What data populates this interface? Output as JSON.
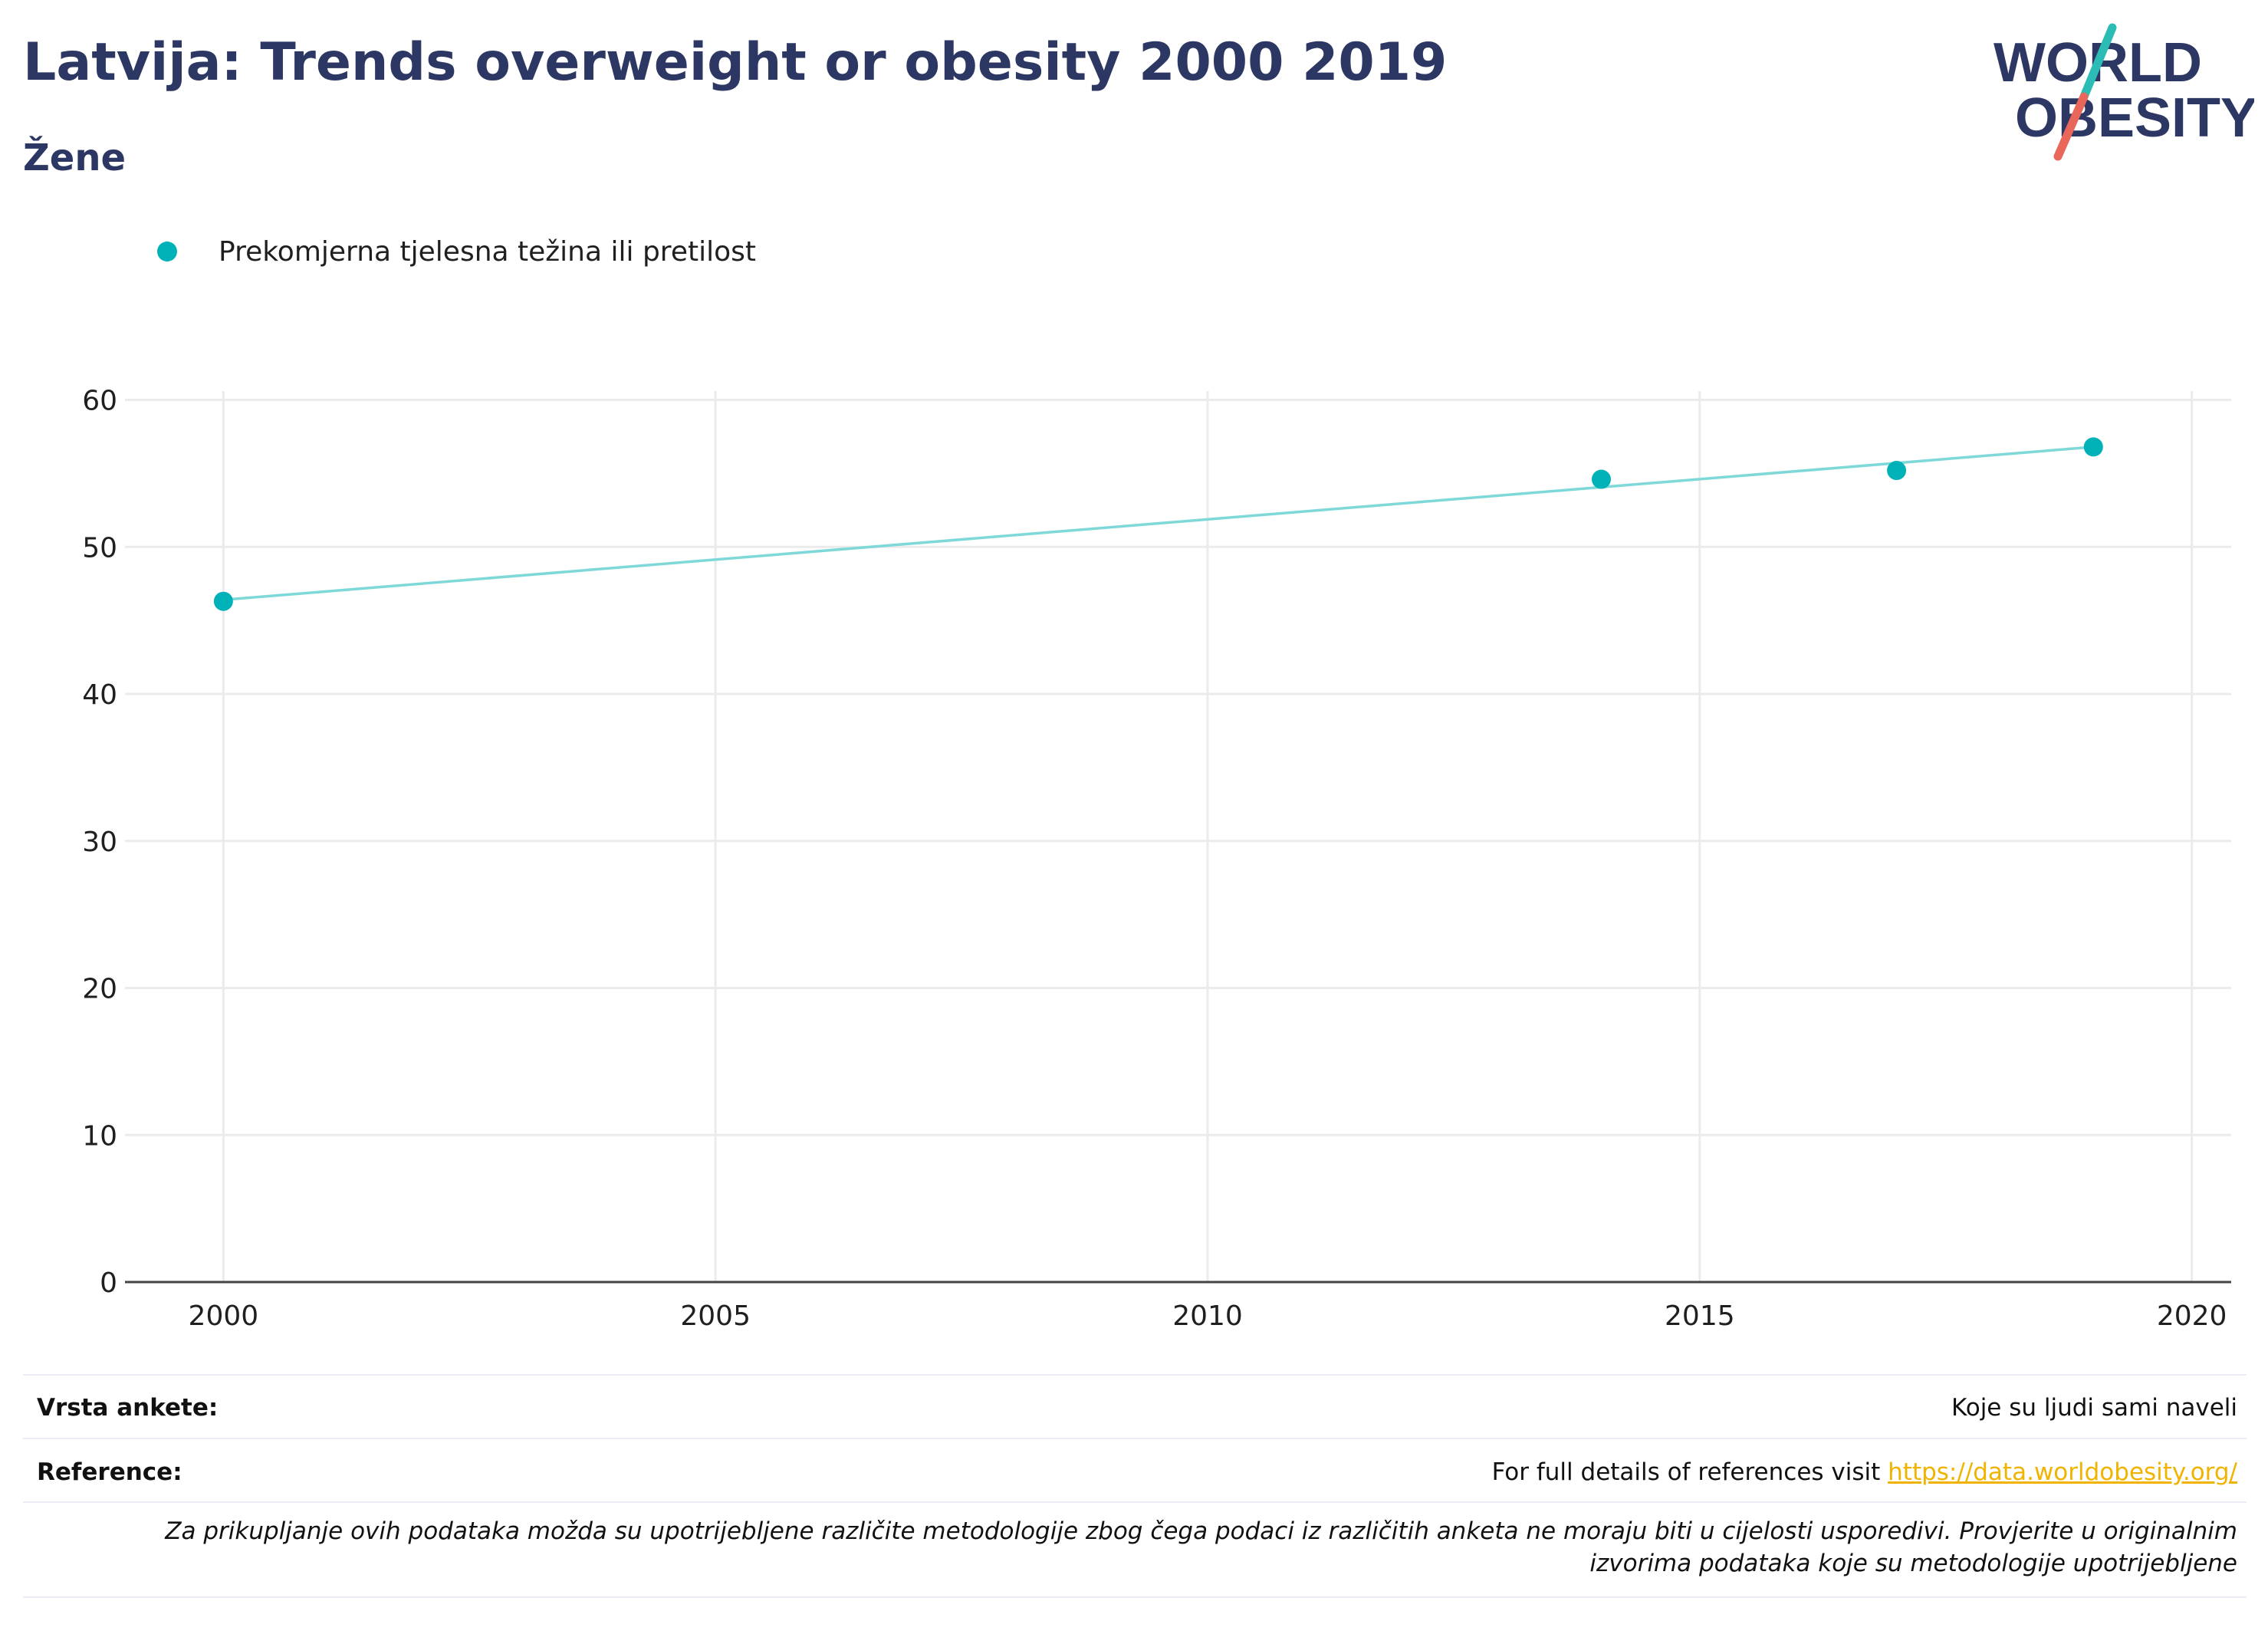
{
  "header": {
    "title": "Latvija: Trends overweight or obesity 2000 2019",
    "subtitle": "Žene"
  },
  "logo": {
    "line1": "WORLD",
    "line2": "OBESITY",
    "text_color": "#2c3763",
    "slash_top_color": "#2bbcb5",
    "slash_bottom_color": "#e8675a"
  },
  "chart_data": {
    "type": "scatter",
    "title": "Latvija: Trends overweight or obesity 2000 2019",
    "subtitle": "Žene",
    "xlabel": "",
    "ylabel": "",
    "xlim": [
      1999,
      2020.4
    ],
    "ylim": [
      0,
      60.6
    ],
    "x_ticks": [
      2000,
      2005,
      2010,
      2015,
      2020
    ],
    "y_ticks": [
      0,
      10,
      20,
      30,
      40,
      50,
      60
    ],
    "grid": true,
    "legend_position": "top-left",
    "series": [
      {
        "name": "Prekomjerna tjelesna težina ili pretilost",
        "color": "#00b2b8",
        "points": [
          {
            "x": 2000,
            "y": 46.3
          },
          {
            "x": 2014,
            "y": 54.6
          },
          {
            "x": 2017,
            "y": 55.2
          },
          {
            "x": 2019,
            "y": 56.8
          }
        ]
      }
    ],
    "trendline": {
      "color": "#7fd8d8",
      "start": {
        "x": 2000,
        "y": 46.4
      },
      "end": {
        "x": 2019,
        "y": 56.8
      }
    }
  },
  "footer": {
    "survey_type_label": "Vrsta ankete:",
    "survey_type_value": "Koje su ljudi sami naveli",
    "reference_label": "Reference:",
    "reference_text": "For full details of references visit",
    "reference_link": "https://data.worldobesity.org/",
    "note": "Za prikupljanje ovih podataka možda su upotrijebljene različite metodologije zbog čega podaci iz različitih anketa ne moraju biti u cijelosti usporedivi. Provjerite u originalnim izvorima podataka koje su metodologije upotrijebljene",
    "link_color": "#f0b400"
  }
}
